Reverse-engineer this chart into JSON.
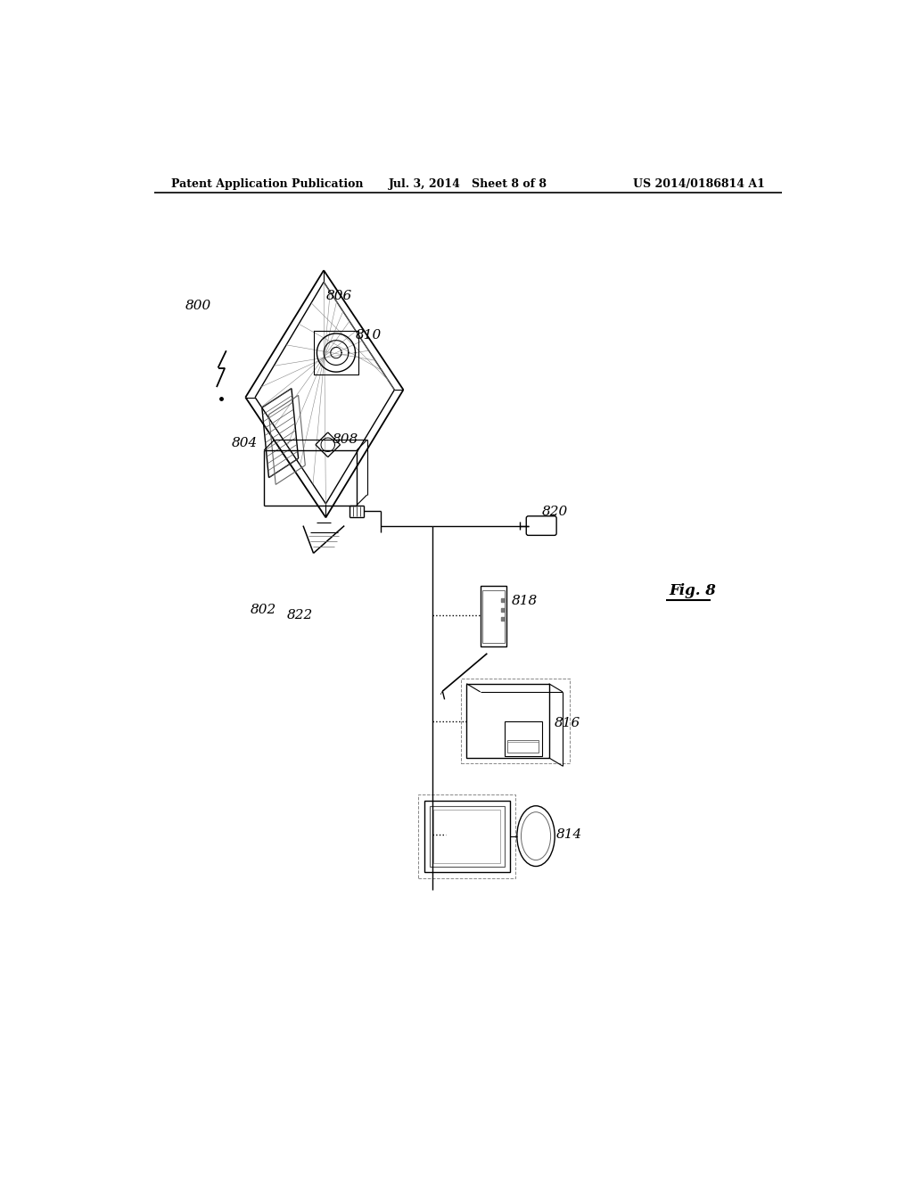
{
  "bg_color": "#ffffff",
  "header_left": "Patent Application Publication",
  "header_mid": "Jul. 3, 2014   Sheet 8 of 8",
  "header_right": "US 2014/0186814 A1",
  "fig_label": "Fig. 8"
}
